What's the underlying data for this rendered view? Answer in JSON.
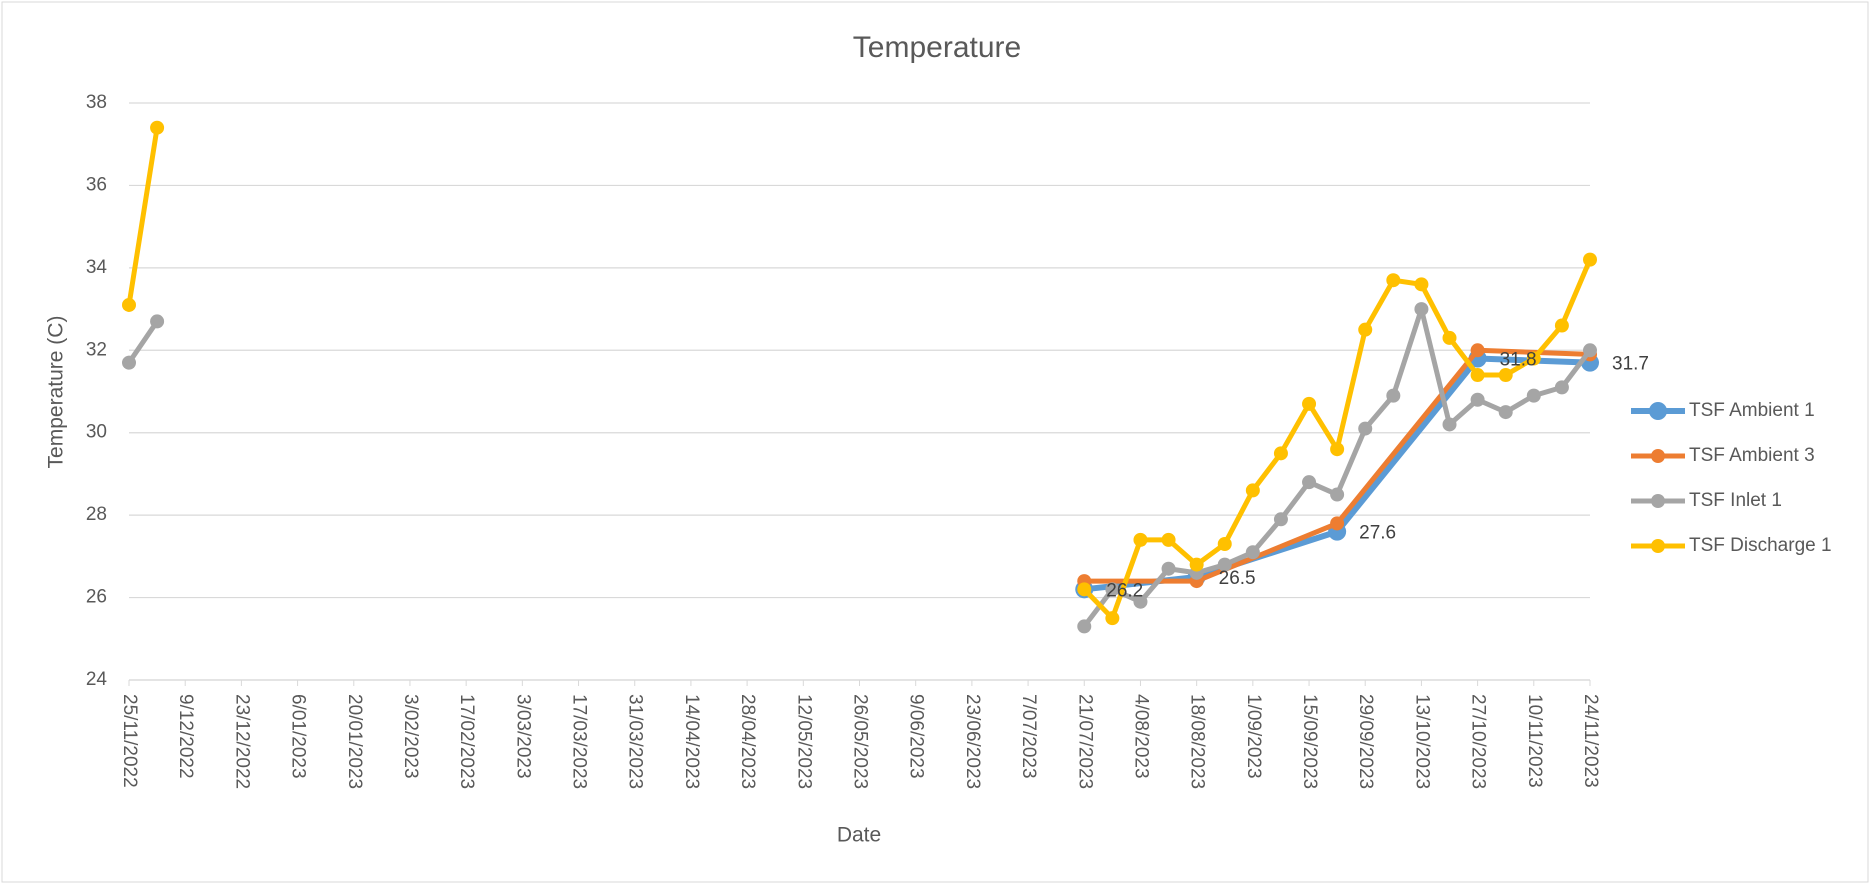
{
  "chart_data": {
    "type": "line",
    "title": "Temperature",
    "x_label": "Date",
    "y_label": "Temperature (C)",
    "xlim": [
      "25/11/2022",
      "24/11/2023"
    ],
    "xticks": [
      "25/11/2022",
      "9/12/2022",
      "23/12/2022",
      "6/01/2023",
      "20/01/2023",
      "3/02/2023",
      "17/02/2023",
      "3/03/2023",
      "17/03/2023",
      "31/03/2023",
      "14/04/2023",
      "28/04/2023",
      "12/05/2023",
      "26/05/2023",
      "9/06/2023",
      "23/06/2023",
      "7/07/2023",
      "21/07/2023",
      "4/08/2023",
      "18/08/2023",
      "1/09/2023",
      "15/09/2023",
      "29/09/2023",
      "13/10/2023",
      "27/10/2023",
      "10/11/2023",
      "24/11/2023"
    ],
    "ylim": [
      24,
      38
    ],
    "yticks": [
      24,
      26,
      28,
      30,
      32,
      34,
      36,
      38
    ],
    "grid": true,
    "legend": "right",
    "series": [
      {
        "name": "TSF Ambient 1",
        "color": "#5b9bd5",
        "data_labels": true,
        "x": [
          "21/07/2023",
          "18/08/2023",
          "22/09/2023",
          "27/10/2023",
          "24/11/2023"
        ],
        "values": [
          26.2,
          26.5,
          27.6,
          31.8,
          31.7
        ]
      },
      {
        "name": "TSF Ambient 3",
        "color": "#ed7d31",
        "x": [
          "21/07/2023",
          "18/08/2023",
          "22/09/2023",
          "27/10/2023",
          "24/11/2023"
        ],
        "values": [
          26.4,
          26.4,
          27.8,
          32.0,
          31.9
        ]
      },
      {
        "name": "TSF Inlet 1",
        "color": "#a5a5a5",
        "x": [
          "25/11/2022",
          "2/12/2022",
          null,
          "21/07/2023",
          "28/07/2023",
          "4/08/2023",
          "11/08/2023",
          "18/08/2023",
          "25/08/2023",
          "1/09/2023",
          "8/09/2023",
          "15/09/2023",
          "22/09/2023",
          "29/09/2023",
          "6/10/2023",
          "13/10/2023",
          "20/10/2023",
          "27/10/2023",
          "3/11/2023",
          "10/11/2023",
          "17/11/2023",
          "24/11/2023"
        ],
        "values": [
          31.7,
          32.7,
          null,
          25.3,
          26.2,
          25.9,
          26.7,
          26.6,
          26.8,
          27.1,
          27.9,
          28.8,
          28.5,
          30.1,
          30.9,
          33.0,
          30.2,
          30.8,
          30.5,
          30.9,
          31.1,
          32.0
        ]
      },
      {
        "name": "TSF Discharge 1",
        "color": "#ffc000",
        "x": [
          "25/11/2022",
          "2/12/2022",
          null,
          "21/07/2023",
          "28/07/2023",
          "4/08/2023",
          "11/08/2023",
          "18/08/2023",
          "25/08/2023",
          "1/09/2023",
          "8/09/2023",
          "15/09/2023",
          "22/09/2023",
          "29/09/2023",
          "6/10/2023",
          "13/10/2023",
          "20/10/2023",
          "27/10/2023",
          "3/11/2023",
          "10/11/2023",
          "17/11/2023",
          "24/11/2023"
        ],
        "values": [
          33.1,
          37.4,
          null,
          26.2,
          25.5,
          27.4,
          27.4,
          26.8,
          27.3,
          28.6,
          29.5,
          30.7,
          29.6,
          32.5,
          33.7,
          33.6,
          32.3,
          31.4,
          31.4,
          31.8,
          32.6,
          34.2
        ]
      }
    ]
  }
}
